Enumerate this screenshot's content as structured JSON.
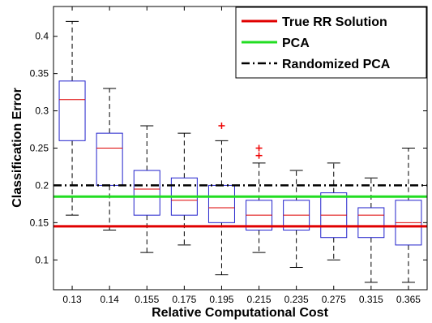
{
  "chart_data": {
    "type": "box",
    "xlabel": "Relative Computational Cost",
    "ylabel": "Classification Error",
    "categories": [
      "0.13",
      "0.14",
      "0.155",
      "0.175",
      "0.195",
      "0.215",
      "0.235",
      "0.275",
      "0.315",
      "0.365"
    ],
    "ylim": [
      0.06,
      0.44
    ],
    "yticks": [
      "0.1",
      "0.15",
      "0.2",
      "0.25",
      "0.3",
      "0.35",
      "0.4"
    ],
    "grid": false,
    "legend_position": "top-right",
    "boxes": [
      {
        "category": "0.13",
        "whisker_low": 0.16,
        "q1": 0.26,
        "median": 0.315,
        "q3": 0.34,
        "whisker_high": 0.42,
        "outliers": []
      },
      {
        "category": "0.14",
        "whisker_low": 0.14,
        "q1": 0.2,
        "median": 0.25,
        "q3": 0.27,
        "whisker_high": 0.33,
        "outliers": []
      },
      {
        "category": "0.155",
        "whisker_low": 0.11,
        "q1": 0.16,
        "median": 0.195,
        "q3": 0.22,
        "whisker_high": 0.28,
        "outliers": []
      },
      {
        "category": "0.175",
        "whisker_low": 0.12,
        "q1": 0.16,
        "median": 0.18,
        "q3": 0.21,
        "whisker_high": 0.27,
        "outliers": []
      },
      {
        "category": "0.195",
        "whisker_low": 0.08,
        "q1": 0.15,
        "median": 0.17,
        "q3": 0.2,
        "whisker_high": 0.26,
        "outliers": [
          0.28
        ]
      },
      {
        "category": "0.215",
        "whisker_low": 0.11,
        "q1": 0.14,
        "median": 0.16,
        "q3": 0.18,
        "whisker_high": 0.23,
        "outliers": [
          0.24,
          0.25
        ]
      },
      {
        "category": "0.235",
        "whisker_low": 0.09,
        "q1": 0.14,
        "median": 0.16,
        "q3": 0.18,
        "whisker_high": 0.22,
        "outliers": []
      },
      {
        "category": "0.275",
        "whisker_low": 0.1,
        "q1": 0.13,
        "median": 0.16,
        "q3": 0.19,
        "whisker_high": 0.23,
        "outliers": []
      },
      {
        "category": "0.315",
        "whisker_low": 0.07,
        "q1": 0.13,
        "median": 0.16,
        "q3": 0.17,
        "whisker_high": 0.21,
        "outliers": []
      },
      {
        "category": "0.365",
        "whisker_low": 0.07,
        "q1": 0.12,
        "median": 0.15,
        "q3": 0.18,
        "whisker_high": 0.25,
        "outliers": []
      }
    ],
    "reference_lines": [
      {
        "name": "True RR Solution",
        "y": 0.145,
        "color": "#e00000",
        "style": "solid"
      },
      {
        "name": "PCA",
        "y": 0.185,
        "color": "#22dd22",
        "style": "solid"
      },
      {
        "name": "Randomized PCA",
        "y": 0.2,
        "color": "#000000",
        "style": "dashdot"
      }
    ],
    "colors": {
      "box": "#2222cc",
      "median": "#dd0000",
      "whisker": "#000000",
      "outlier": "#ee0000"
    }
  }
}
